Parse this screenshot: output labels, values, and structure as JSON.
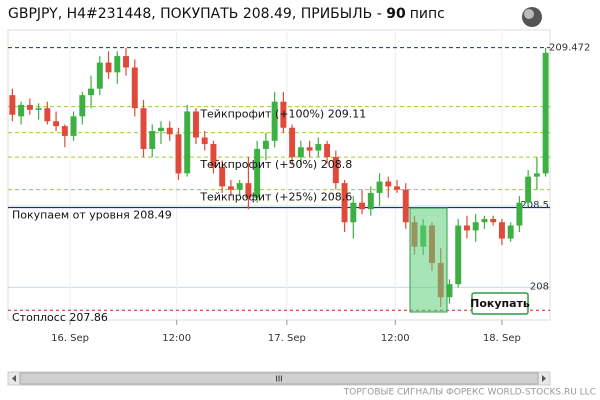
{
  "chart_data": {
    "type": "candlestick",
    "title": "GBPJPY, H4#231448, ПОКУПАТЬ 208.49, ПРИБЫЛЬ - ",
    "profit": "90",
    "profit_unit": "пипс",
    "footer": "ТОРГОВЫЕ СИГНАЛЫ ФОРЕКС WORLD-STOCKS.RU LLC",
    "button": "Покупать",
    "scroll_grip": "III",
    "up_color": "#3cb043",
    "down_color": "#e04a3a",
    "xlim": [
      -0.5,
      61.5
    ],
    "ylim": [
      207.8,
      209.58
    ],
    "xticks": [
      {
        "value": 6.6,
        "label": "16. Sep"
      },
      {
        "value": 18.8,
        "label": "12:00"
      },
      {
        "value": 31.4,
        "label": "17. Sep"
      },
      {
        "value": 43.8,
        "label": "12:00"
      },
      {
        "value": 56.0,
        "label": "18. Sep"
      }
    ],
    "yticks": [
      208,
      208.5
    ],
    "current_price": 209.472,
    "levels": [
      {
        "kind": "takeprofit",
        "value": 209.11,
        "label": "Тейкпрофит (+100%) 209.11"
      },
      {
        "kind": "takeprofit",
        "value": 208.95
      },
      {
        "kind": "takeprofit",
        "value": 208.8,
        "label": "Тейкпрофит (+50%) 208.8"
      },
      {
        "kind": "takeprofit",
        "value": 208.6,
        "label": "Тейкпрофит (+25%) 208.6"
      },
      {
        "kind": "entry",
        "value": 208.49,
        "label": "Покупаем от уровня 208.49"
      },
      {
        "kind": "stoploss",
        "value": 207.86,
        "label": "Стоплосс 207.86"
      }
    ],
    "ohlc": [
      [
        209.18,
        209.22,
        209.02,
        209.06
      ],
      [
        209.05,
        209.14,
        209.0,
        209.12
      ],
      [
        209.12,
        209.16,
        209.06,
        209.09
      ],
      [
        209.09,
        209.13,
        209.03,
        209.1
      ],
      [
        209.1,
        209.14,
        209.0,
        209.02
      ],
      [
        209.02,
        209.08,
        208.96,
        208.99
      ],
      [
        208.99,
        209.0,
        208.86,
        208.93
      ],
      [
        208.93,
        209.08,
        208.9,
        209.05
      ],
      [
        209.05,
        209.2,
        209.0,
        209.18
      ],
      [
        209.18,
        209.3,
        209.1,
        209.22
      ],
      [
        209.22,
        209.42,
        209.18,
        209.38
      ],
      [
        209.38,
        209.45,
        209.28,
        209.32
      ],
      [
        209.32,
        209.45,
        209.25,
        209.42
      ],
      [
        209.42,
        209.47,
        209.3,
        209.35
      ],
      [
        209.35,
        209.4,
        209.05,
        209.1
      ],
      [
        209.1,
        209.15,
        208.8,
        208.85
      ],
      [
        208.85,
        209.0,
        208.8,
        208.96
      ],
      [
        208.96,
        209.02,
        208.88,
        208.98
      ],
      [
        208.98,
        209.02,
        208.9,
        208.94
      ],
      [
        208.94,
        208.98,
        208.66,
        208.7
      ],
      [
        208.7,
        209.12,
        208.68,
        209.08
      ],
      [
        209.08,
        209.1,
        208.88,
        208.92
      ],
      [
        208.92,
        208.96,
        208.84,
        208.88
      ],
      [
        208.88,
        208.9,
        208.7,
        208.74
      ],
      [
        208.74,
        208.78,
        208.58,
        208.62
      ],
      [
        208.62,
        208.66,
        208.56,
        208.6
      ],
      [
        208.6,
        208.66,
        208.56,
        208.64
      ],
      [
        208.64,
        208.8,
        208.48,
        208.55
      ],
      [
        208.55,
        208.9,
        208.52,
        208.85
      ],
      [
        208.85,
        208.95,
        208.78,
        208.9
      ],
      [
        208.9,
        209.2,
        208.86,
        209.14
      ],
      [
        209.14,
        209.2,
        208.95,
        208.98
      ],
      [
        208.98,
        209.0,
        208.75,
        208.8
      ],
      [
        208.8,
        208.9,
        208.75,
        208.86
      ],
      [
        208.86,
        208.9,
        208.8,
        208.84
      ],
      [
        208.84,
        208.92,
        208.8,
        208.88
      ],
      [
        208.88,
        208.9,
        208.76,
        208.8
      ],
      [
        208.8,
        208.84,
        208.6,
        208.64
      ],
      [
        208.64,
        208.66,
        208.34,
        208.4
      ],
      [
        208.4,
        208.56,
        208.3,
        208.52
      ],
      [
        208.52,
        208.6,
        208.45,
        208.48
      ],
      [
        208.48,
        208.62,
        208.44,
        208.58
      ],
      [
        208.58,
        208.7,
        208.5,
        208.65
      ],
      [
        208.65,
        208.68,
        208.55,
        208.62
      ],
      [
        208.62,
        208.66,
        208.58,
        208.6
      ],
      [
        208.6,
        208.64,
        208.36,
        208.4
      ],
      [
        208.4,
        208.44,
        208.2,
        208.25
      ],
      [
        208.25,
        208.42,
        208.2,
        208.38
      ],
      [
        208.38,
        208.4,
        208.1,
        208.15
      ],
      [
        208.15,
        208.24,
        207.88,
        207.94
      ],
      [
        207.94,
        208.05,
        207.9,
        208.02
      ],
      [
        208.02,
        208.42,
        208.0,
        208.38
      ],
      [
        208.38,
        208.44,
        208.3,
        208.35
      ],
      [
        208.35,
        208.45,
        208.28,
        208.4
      ],
      [
        208.4,
        208.44,
        208.36,
        208.42
      ],
      [
        208.42,
        208.44,
        208.38,
        208.4
      ],
      [
        208.4,
        208.42,
        208.26,
        208.3
      ],
      [
        208.3,
        208.4,
        208.28,
        208.38
      ],
      [
        208.38,
        208.56,
        208.34,
        208.52
      ],
      [
        208.52,
        208.72,
        208.5,
        208.68
      ],
      [
        208.68,
        208.8,
        208.6,
        208.7
      ],
      [
        208.7,
        209.47,
        208.68,
        209.44
      ]
    ]
  }
}
